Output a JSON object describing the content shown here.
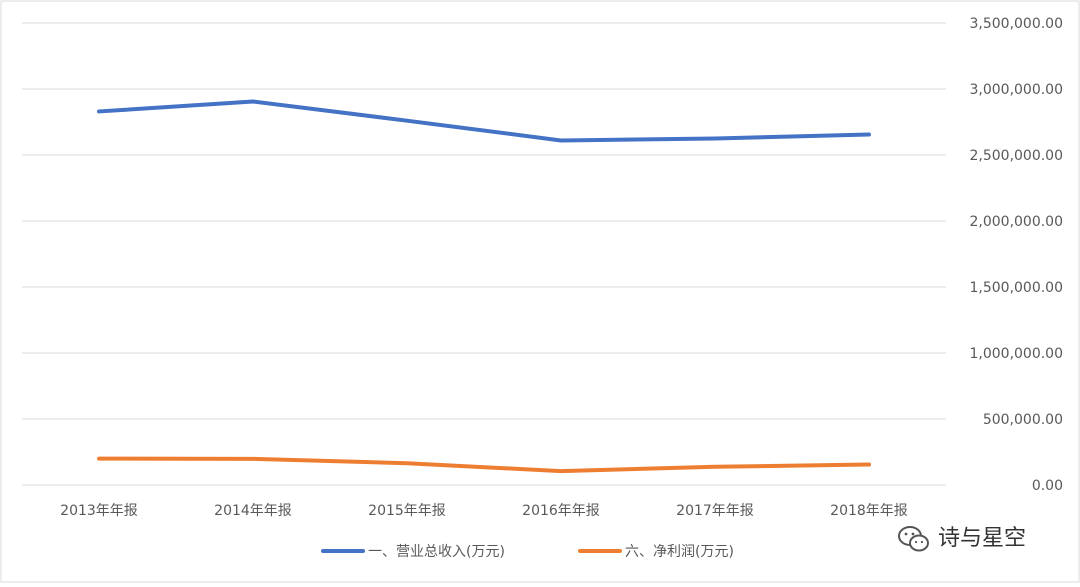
{
  "chart_data": {
    "type": "line",
    "categories": [
      "2013年年报",
      "2014年年报",
      "2015年年报",
      "2016年年报",
      "2017年年报",
      "2018年年报"
    ],
    "series": [
      {
        "name": "一、营业总收入(万元)",
        "color": "#4472C4",
        "values": [
          2830000,
          2905000,
          2760000,
          2610000,
          2625000,
          2655000
        ]
      },
      {
        "name": "六、净利润(万元)",
        "color": "#ED7D31",
        "values": [
          200000,
          198000,
          165000,
          105000,
          138000,
          155000
        ]
      }
    ],
    "ylim": [
      0,
      3500000
    ],
    "yticks": [
      "0.00",
      "500,000.00",
      "1,000,000.00",
      "1,500,000.00",
      "2,000,000.00",
      "2,500,000.00",
      "3,000,000.00",
      "3,500,000.00"
    ],
    "y_axis_position": "right",
    "grid": true,
    "legend": "bottom"
  },
  "watermark": {
    "text": "诗与星空",
    "icon": "wechat-icon"
  },
  "colors": {
    "grid": "#D9D9D9",
    "text": "#595959",
    "border": "#D9D9D9"
  }
}
